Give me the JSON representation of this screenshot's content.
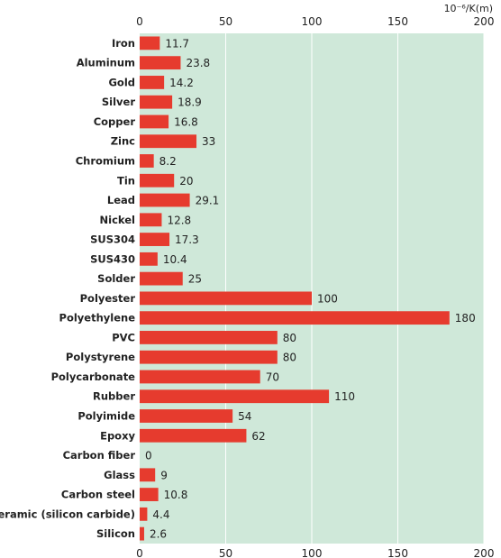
{
  "chart_data": {
    "type": "bar",
    "orientation": "horizontal",
    "unit_label": "10⁻⁶/K(m)",
    "xlim": [
      0,
      200
    ],
    "x_ticks": [
      0,
      50,
      100,
      150,
      200
    ],
    "grid": true,
    "colors": {
      "bar": "#e63b2e",
      "plot_background": "#cfe8d9",
      "gridline": "#ffffff"
    },
    "categories": [
      "Iron",
      "Aluminum",
      "Gold",
      "Silver",
      "Copper",
      "Zinc",
      "Chromium",
      "Tin",
      "Lead",
      "Nickel",
      "SUS304",
      "SUS430",
      "Solder",
      "Polyester",
      "Polyethylene",
      "PVC",
      "Polystyrene",
      "Polycarbonate",
      "Rubber",
      "Polyimide",
      "Epoxy",
      "Carbon fiber",
      "Glass",
      "Carbon steel",
      "Ceramic (silicon carbide)",
      "Silicon"
    ],
    "values": [
      11.7,
      23.8,
      14.2,
      18.9,
      16.8,
      33,
      8.2,
      20,
      29.1,
      12.8,
      17.3,
      10.4,
      25,
      100,
      180,
      80,
      80,
      70,
      110,
      54,
      62,
      0,
      9,
      10.8,
      4.4,
      2.6
    ]
  }
}
